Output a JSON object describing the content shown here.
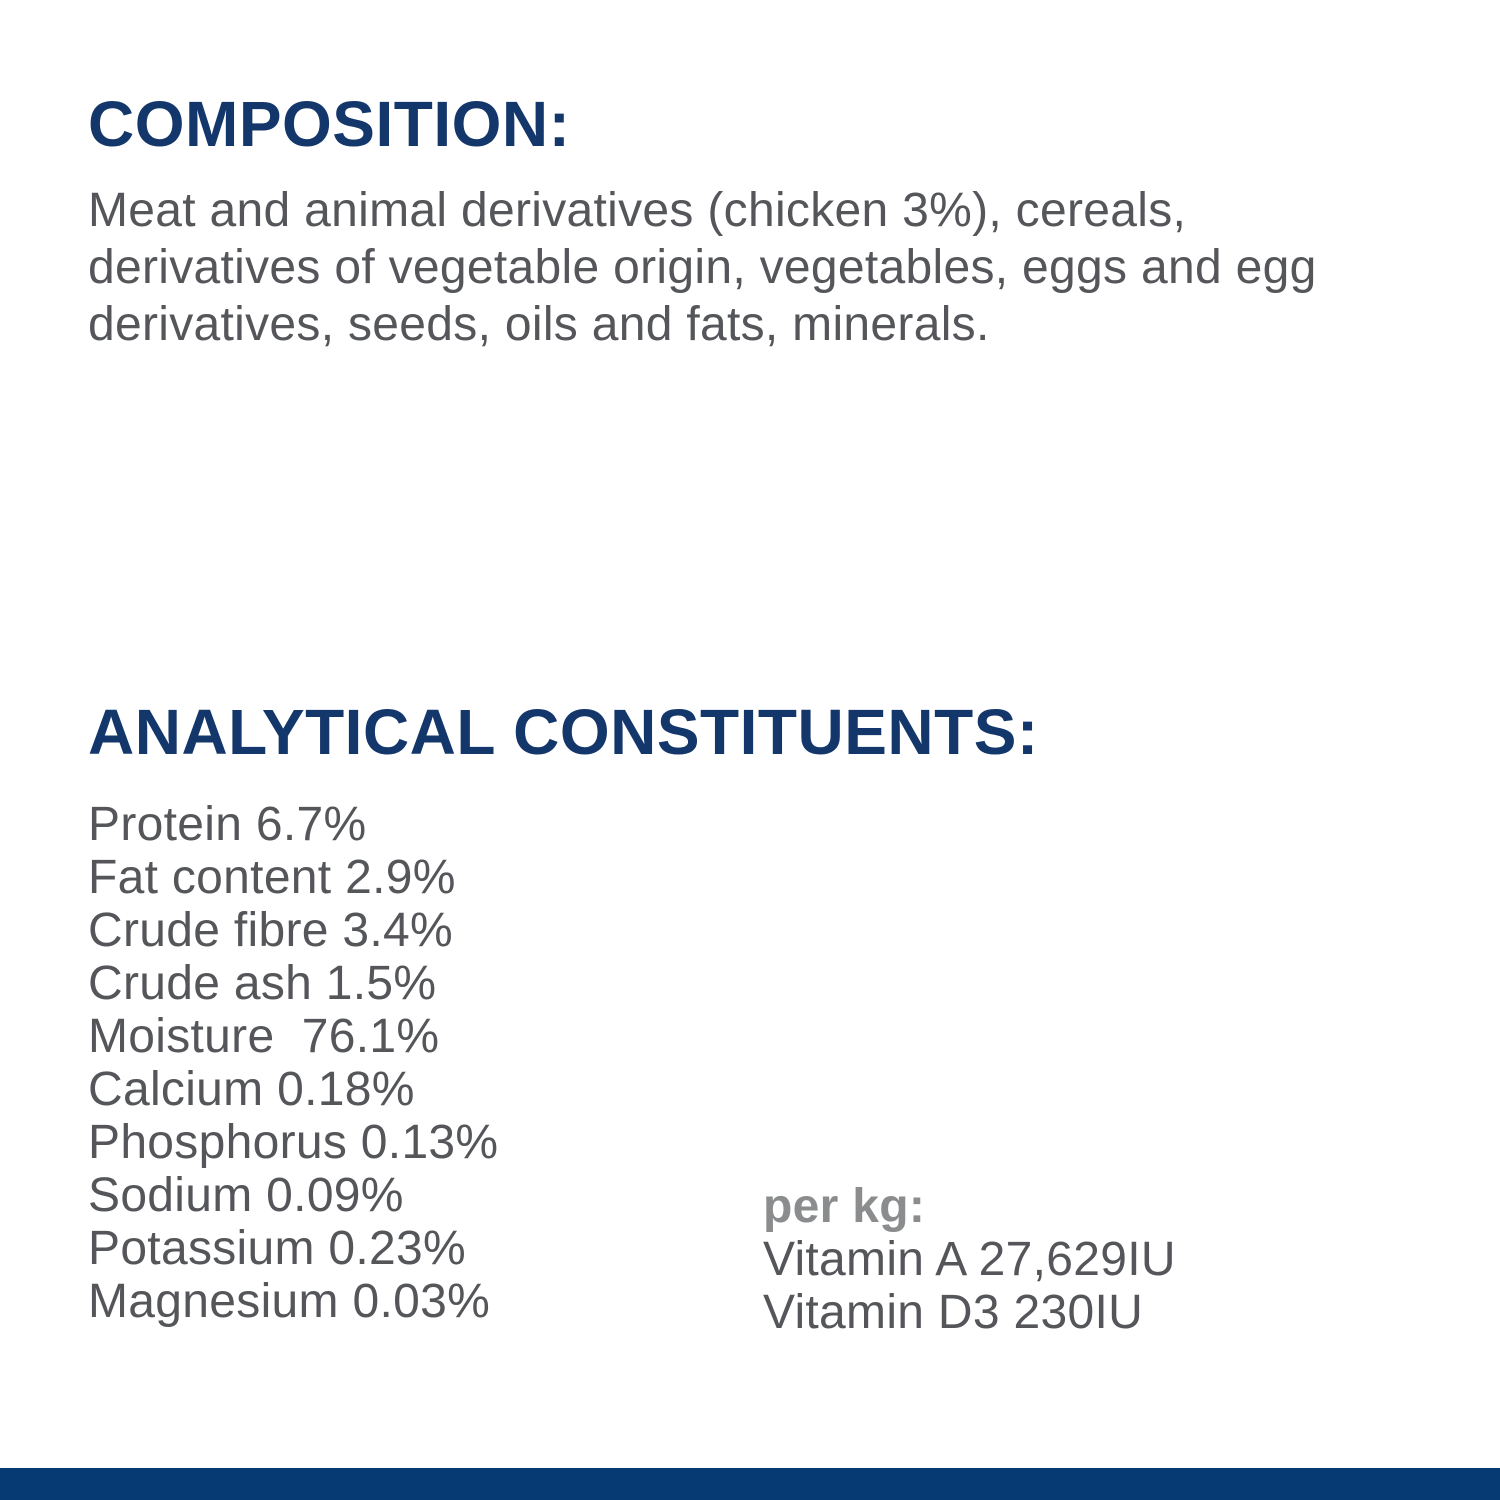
{
  "colors": {
    "heading_navy": "#14376b",
    "footer_navy": "#053a72",
    "body_gray": "#54565a",
    "per_kg_label_gray": "#8a8c8e",
    "background": "#ffffff"
  },
  "composition": {
    "heading": "COMPOSITION:",
    "body": "Meat and animal derivatives (chicken 3%), cereals, derivatives of vegetable origin, vegetables, eggs and egg derivatives, seeds, oils and fats, minerals."
  },
  "analytical": {
    "heading": "ANALYTICAL CONSTITUENTS:",
    "items": [
      "Protein 6.7%",
      "Fat content 2.9%",
      "Crude fibre 3.4%",
      "Crude ash 1.5%",
      "Moisture  76.1%",
      "Calcium 0.18%",
      "Phosphorus 0.13%",
      "Sodium 0.09%",
      "Potassium 0.23%",
      "Magnesium 0.03%"
    ],
    "per_kg": {
      "label": "per kg:",
      "items": [
        "Vitamin A 27,629IU",
        "Vitamin D3 230IU"
      ]
    }
  }
}
